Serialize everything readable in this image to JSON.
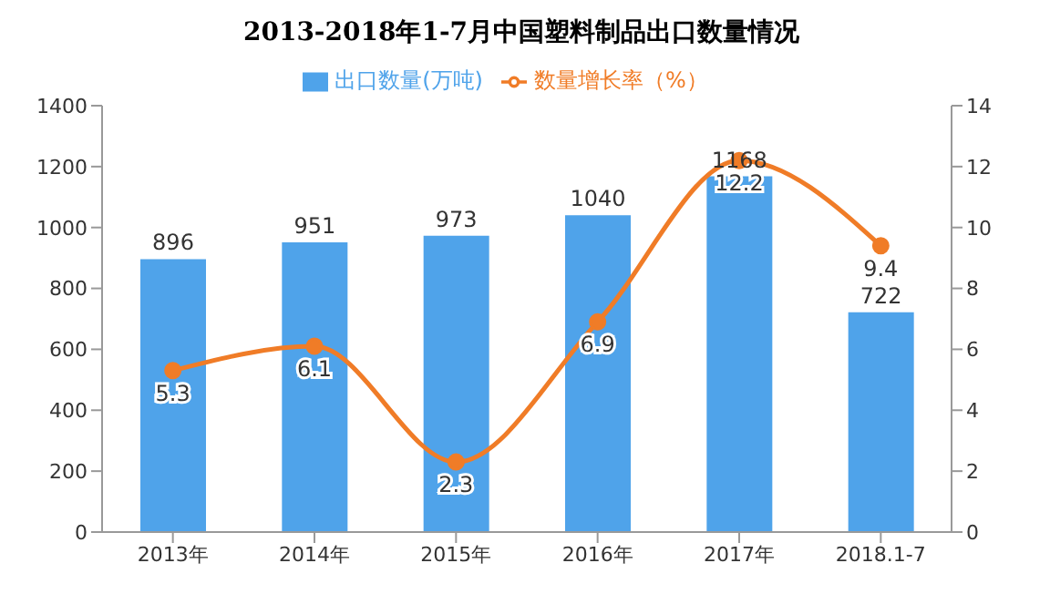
{
  "chart_data": {
    "type": "bar",
    "title": "2013-2018年1-7月中国塑料制品出口数量情况",
    "categories": [
      "2013年",
      "2014年",
      "2015年",
      "2016年",
      "2017年",
      "2018.1-7"
    ],
    "series": [
      {
        "name": "出口数量(万吨)",
        "color": "#4fa3ea",
        "values": [
          896,
          951,
          973,
          1040,
          1168,
          722
        ]
      },
      {
        "name": "数量增长率（%）",
        "type": "line",
        "axis": "y2",
        "color": "#f07c27",
        "values": [
          5.3,
          6.1,
          2.3,
          6.9,
          12.2,
          9.4
        ]
      }
    ],
    "ylim": [
      0,
      1400
    ],
    "yticks": [
      0,
      200,
      400,
      600,
      800,
      1000,
      1200,
      1400
    ],
    "y2lim": [
      0,
      14
    ],
    "y2ticks": [
      0,
      2,
      4,
      6,
      8,
      10,
      12,
      14
    ],
    "data_labels": true,
    "legend": "top",
    "marker": "circle",
    "grid": false
  }
}
